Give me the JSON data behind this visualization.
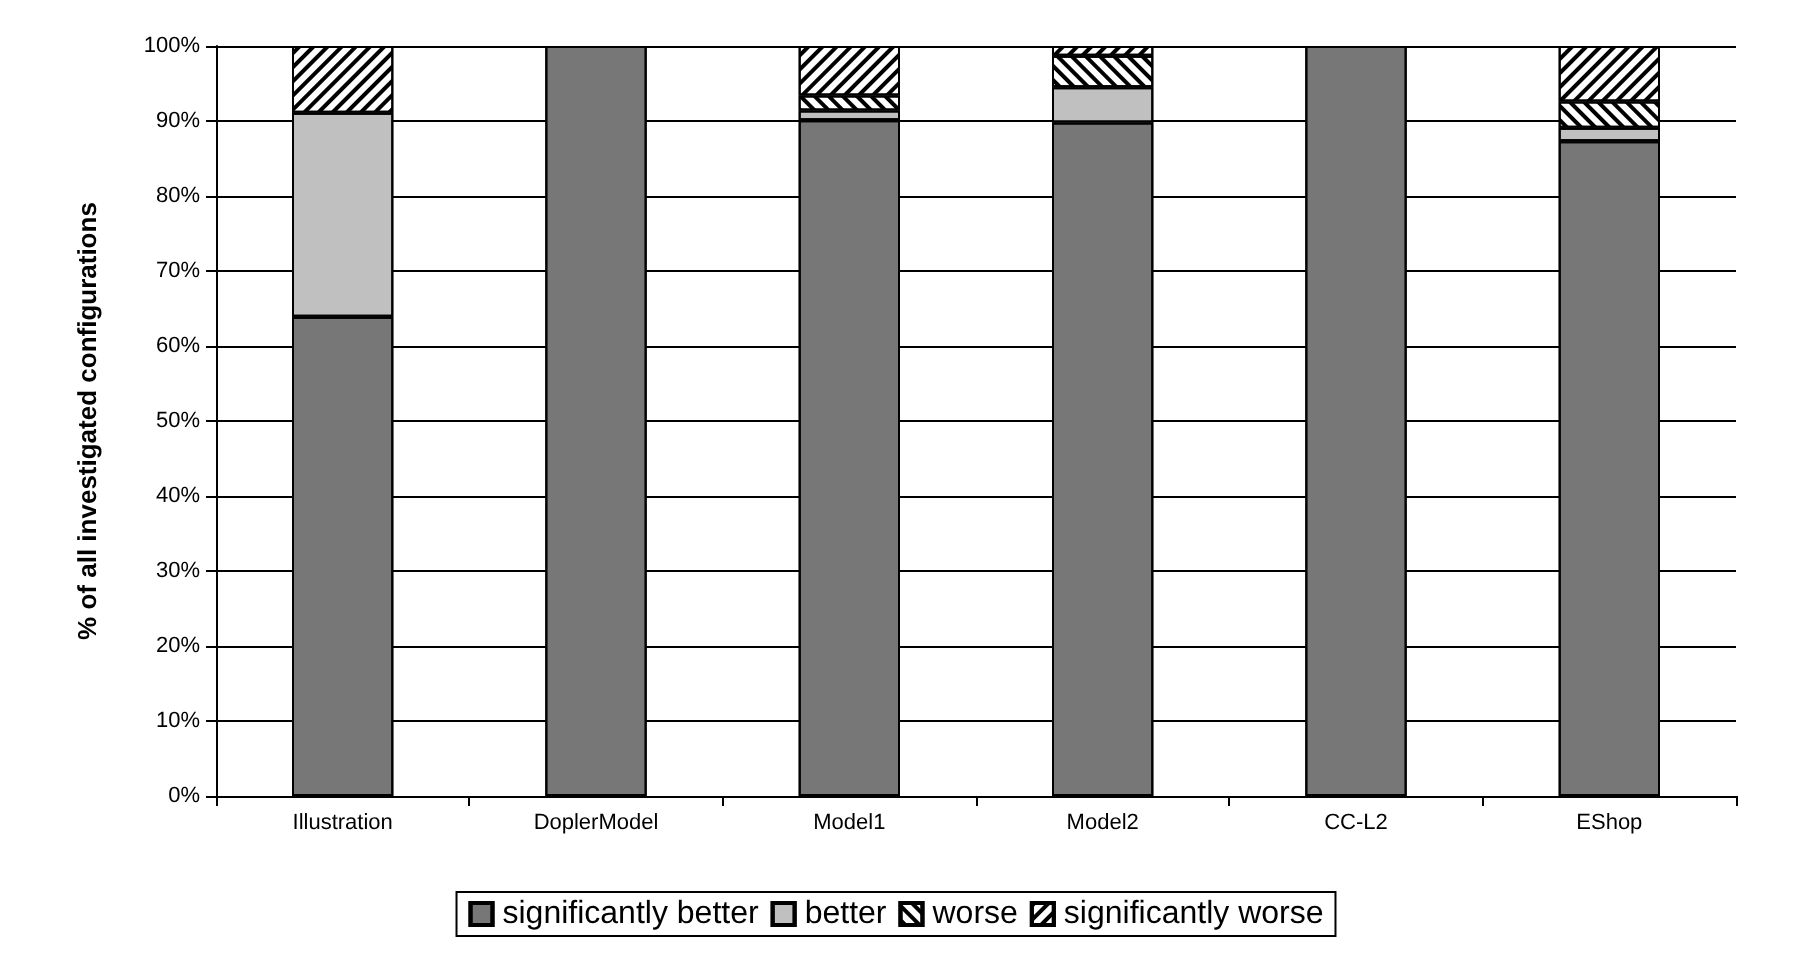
{
  "chart_data": {
    "type": "bar",
    "stacked": true,
    "ylabel": "% of all investigated configurations",
    "categories": [
      "Illustration",
      "DoplerModel",
      "Model1",
      "Model2",
      "CC-L2",
      "EShop"
    ],
    "series": [
      {
        "name": "significantly better",
        "color": "#777777",
        "values": [
          63.9,
          100,
          90.1,
          89.8,
          100,
          87.3
        ]
      },
      {
        "name": "better",
        "color": "#c0c0c0",
        "values": [
          27.2,
          0,
          1.3,
          4.7,
          0,
          1.8
        ]
      },
      {
        "name": "worse",
        "color": "#ffffff",
        "values": [
          0,
          0,
          2,
          4.2,
          0,
          3.5
        ]
      },
      {
        "name": "significantly worse",
        "color": "#ffffff",
        "values": [
          8.9,
          0,
          6.6,
          1.3,
          0,
          7.4
        ]
      }
    ],
    "ylim": [
      0,
      100
    ],
    "yticks": [
      {
        "value": 0,
        "label": "0%"
      },
      {
        "value": 10,
        "label": "10%"
      },
      {
        "value": 20,
        "label": "20%"
      },
      {
        "value": 30,
        "label": "30%"
      },
      {
        "value": 40,
        "label": "40%"
      },
      {
        "value": 50,
        "label": "50%"
      },
      {
        "value": 60,
        "label": "60%"
      },
      {
        "value": 70,
        "label": "70%"
      },
      {
        "value": 80,
        "label": "80%"
      },
      {
        "value": 90,
        "label": "90%"
      },
      {
        "value": 100,
        "label": "100%"
      }
    ],
    "grid": "y",
    "legend": "bottom"
  }
}
